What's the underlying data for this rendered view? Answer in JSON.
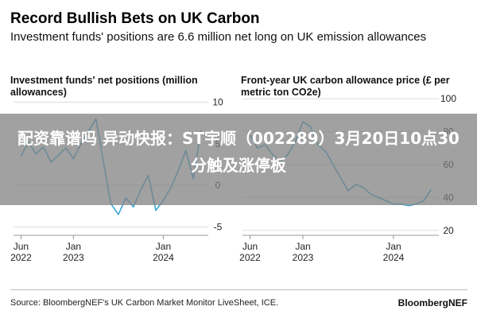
{
  "title": "Record Bullish Bets on UK Carbon",
  "subtitle": "Investment funds' positions are 6.6 million net long on UK emission allowances",
  "overlay_banner": "配资靠谱吗 异动快报：ST宇顺（002289）3月20日10点30分触及涨停板",
  "source": "Source: BloombergNEF's UK Carbon Market Monitor LiveSheet, ICE.",
  "brand": "BloombergNEF",
  "colors": {
    "line": "#3aa6d6",
    "axis": "#999999",
    "grid": "#dddddd",
    "banner": "#808080"
  },
  "chart_data": [
    {
      "type": "line",
      "title": "Investment funds' net positions (million allowances)",
      "x_ticks": [
        "Jun\n2022",
        "Jan\n2023",
        "Jan\n2024"
      ],
      "y_ticks": [
        10,
        5,
        0,
        -5
      ],
      "ylim": [
        -6,
        11
      ],
      "y_axis_side": "right",
      "grid": true,
      "series": [
        {
          "x": [
            "2022-06",
            "2022-07",
            "2022-08",
            "2022-09",
            "2022-10",
            "2022-11",
            "2022-12",
            "2023-01",
            "2023-02",
            "2023-03",
            "2023-04",
            "2023-05",
            "2023-06",
            "2023-07",
            "2023-08",
            "2023-09",
            "2023-10",
            "2023-11",
            "2023-12",
            "2024-01",
            "2024-02",
            "2024-03",
            "2024-04",
            "2024-05",
            "2024-06"
          ],
          "values": [
            3.5,
            5.2,
            3.8,
            4.6,
            2.8,
            3.6,
            4.5,
            3.2,
            5.0,
            6.5,
            8.0,
            2.8,
            -2.2,
            -3.5,
            -1.5,
            -2.6,
            -0.5,
            1.2,
            -3.0,
            -1.8,
            -0.3,
            1.8,
            4.2,
            0.8,
            6.6
          ]
        }
      ]
    },
    {
      "type": "line",
      "title": "Front-year UK carbon allowance price (£ per metric ton CO2e)",
      "x_ticks": [
        "Jun\n2022",
        "Jan\n2023",
        "Jan\n2024"
      ],
      "y_ticks": [
        100,
        80,
        60,
        40,
        20
      ],
      "ylim": [
        17,
        103
      ],
      "y_axis_side": "right",
      "grid": true,
      "series": [
        {
          "x": [
            "2022-06",
            "2022-07",
            "2022-08",
            "2022-09",
            "2022-10",
            "2022-11",
            "2022-12",
            "2023-01",
            "2023-02",
            "2023-03",
            "2023-04",
            "2023-05",
            "2023-06",
            "2023-07",
            "2023-08",
            "2023-09",
            "2023-10",
            "2023-11",
            "2023-12",
            "2024-01",
            "2024-02",
            "2024-03",
            "2024-04",
            "2024-05",
            "2024-06"
          ],
          "values": [
            78,
            70,
            72,
            66,
            62,
            66,
            74,
            86,
            83,
            72,
            68,
            60,
            52,
            44,
            48,
            46,
            42,
            40,
            38,
            36,
            36,
            35,
            36,
            38,
            45
          ]
        }
      ]
    }
  ]
}
